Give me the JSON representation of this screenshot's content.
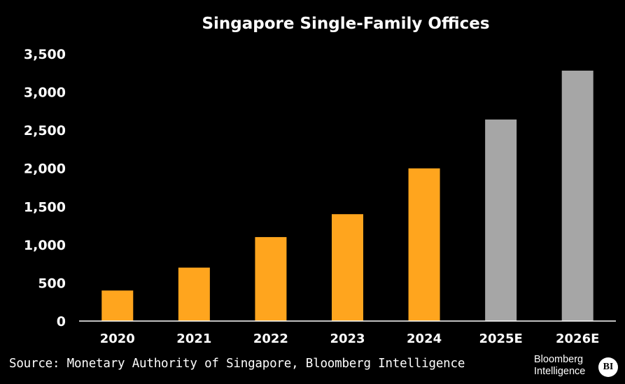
{
  "chart_data": {
    "type": "bar",
    "title": "Singapore Single-Family Offices",
    "categories": [
      "2020",
      "2021",
      "2022",
      "2023",
      "2024",
      "2025E",
      "2026E"
    ],
    "values": [
      400,
      700,
      1100,
      1400,
      2000,
      2640,
      3280
    ],
    "estimated": [
      false,
      false,
      false,
      false,
      false,
      true,
      true
    ],
    "ylim": [
      0,
      3500
    ],
    "yticks": [
      0,
      500,
      1000,
      1500,
      2000,
      2500,
      3000,
      3500
    ],
    "ytick_labels": [
      "0",
      "500",
      "1,000",
      "1,500",
      "2,000",
      "2,500",
      "3,000",
      "3,500"
    ],
    "xlabel": "",
    "ylabel": "",
    "grid": false,
    "colors": {
      "actual": "#FFA51E",
      "estimate": "#A6A6A6",
      "background": "#000000",
      "text": "#FFFFFF",
      "axis": "#FFFFFF"
    }
  },
  "footer": {
    "source": "Source: Monetary Authority of Singapore, Bloomberg Intelligence",
    "brand_text": "Bloomberg\nIntelligence",
    "brand_badge": "BI"
  }
}
